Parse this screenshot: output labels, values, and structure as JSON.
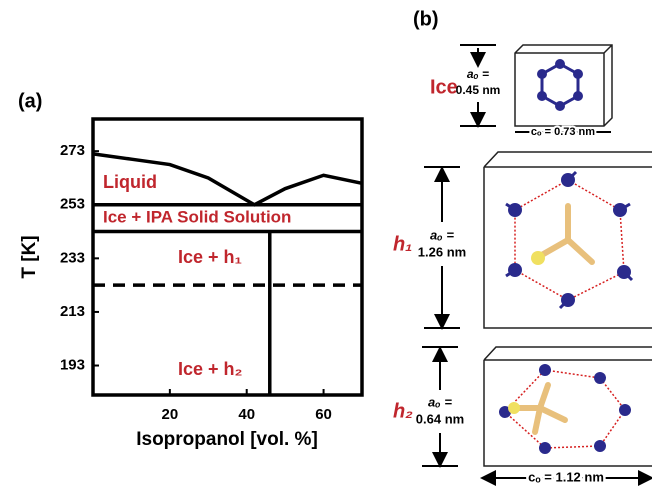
{
  "chart_data": {
    "type": "line",
    "panel_label": "(a)",
    "xlabel": "Isopropanol [vol. %]",
    "ylabel": "T [K]",
    "xlim": [
      0,
      70
    ],
    "xticks": [
      20,
      40,
      60
    ],
    "ylim": [
      182,
      285
    ],
    "yticks": [
      193,
      213,
      233,
      253,
      273
    ],
    "grid": false,
    "label_color": "#c0262d",
    "series": [
      {
        "color": "#000000",
        "dashed": false,
        "x": [
          0,
          10,
          20,
          30,
          42,
          50,
          60,
          70
        ],
        "values": [
          272,
          270,
          268,
          263,
          253,
          259,
          264,
          261
        ]
      },
      {
        "color": "#000000",
        "dashed": false,
        "x": [
          0,
          70
        ],
        "values": [
          253,
          253
        ]
      },
      {
        "color": "#000000",
        "dashed": false,
        "x": [
          0,
          70
        ],
        "values": [
          243,
          243
        ]
      },
      {
        "color": "#000000",
        "dashed": true,
        "x": [
          0,
          70
        ],
        "values": [
          223,
          223
        ]
      },
      {
        "color": "#000000",
        "dashed": false,
        "x": [
          46,
          46
        ],
        "values": [
          243,
          182
        ]
      }
    ],
    "annotations": [
      "Liquid",
      "Ice + IPA Solid Solution",
      "Ice + h₁",
      "Ice + h₂"
    ]
  },
  "panel_b": {
    "panel_label": "(b)",
    "ice": {
      "label": "Ice",
      "a_label": "aₒ =",
      "a_value": "0.45 nm",
      "c": "cₒ = 0.73 nm"
    },
    "h1": {
      "label": "h₁",
      "a_label": "aₒ =",
      "a_value": "1.26 nm"
    },
    "h2": {
      "label": "h₂",
      "a_label": "aₒ =",
      "a_value": "0.64 nm",
      "c": "cₒ = 1.12 nm"
    }
  }
}
